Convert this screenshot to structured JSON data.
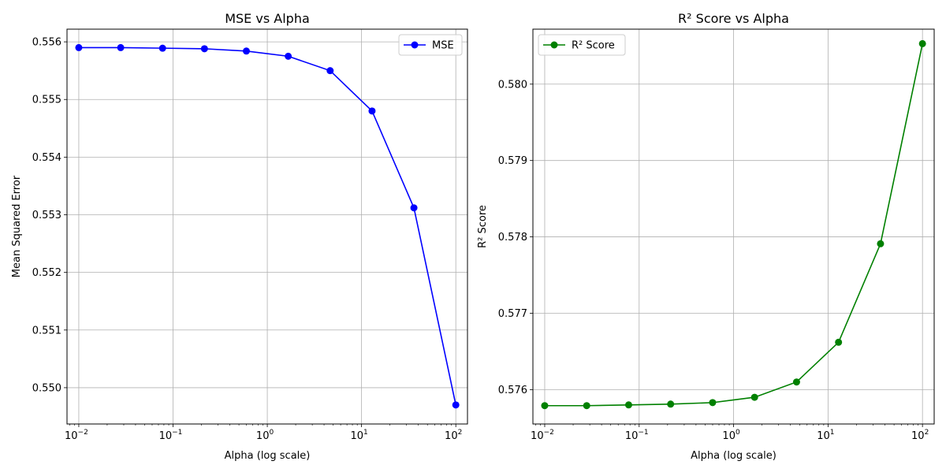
{
  "chart_data": [
    {
      "type": "line",
      "title": "MSE vs Alpha",
      "xlabel": "Alpha (log scale)",
      "ylabel": "Mean Squared Error",
      "xscale": "log",
      "xlim": [
        0.0075,
        133
      ],
      "ylim": [
        0.54937,
        0.55622
      ],
      "grid": true,
      "legend": "top-right",
      "x": [
        0.01,
        0.02783,
        0.07743,
        0.2154,
        0.5995,
        1.668,
        4.642,
        12.92,
        35.94,
        100
      ],
      "series": [
        {
          "name": "MSE",
          "color": "#0000ff",
          "marker": "circle",
          "values": [
            0.5559,
            0.5559,
            0.55589,
            0.55588,
            0.55584,
            0.55575,
            0.5555,
            0.5548,
            0.55312,
            0.5497
          ]
        }
      ],
      "yticks": [
        0.55,
        0.551,
        0.552,
        0.553,
        0.554,
        0.555,
        0.556
      ],
      "ytick_labels": [
        "0.550",
        "0.551",
        "0.552",
        "0.553",
        "0.554",
        "0.555",
        "0.556"
      ],
      "xticks": [
        0.01,
        0.1,
        1,
        10,
        100
      ],
      "xtick_labels": [
        {
          "base": "10",
          "exp": "−2"
        },
        {
          "base": "10",
          "exp": "−1"
        },
        {
          "base": "10",
          "exp": "0"
        },
        {
          "base": "10",
          "exp": "1"
        },
        {
          "base": "10",
          "exp": "2"
        }
      ]
    },
    {
      "type": "line",
      "title": "R² Score vs Alpha",
      "xlabel": "Alpha (log scale)",
      "ylabel": "R² Score",
      "xscale": "log",
      "xlim": [
        0.0075,
        133
      ],
      "ylim": [
        0.57555,
        0.58072
      ],
      "grid": true,
      "legend": "top-left",
      "x": [
        0.01,
        0.02783,
        0.07743,
        0.2154,
        0.5995,
        1.668,
        4.642,
        12.92,
        35.94,
        100
      ],
      "series": [
        {
          "name": "R² Score",
          "color": "#008000",
          "marker": "circle",
          "values": [
            0.57579,
            0.57579,
            0.5758,
            0.57581,
            0.57583,
            0.5759,
            0.5761,
            0.57662,
            0.57791,
            0.58053
          ]
        }
      ],
      "yticks": [
        0.576,
        0.577,
        0.578,
        0.579,
        0.58
      ],
      "ytick_labels": [
        "0.576",
        "0.577",
        "0.578",
        "0.579",
        "0.580"
      ],
      "xticks": [
        0.01,
        0.1,
        1,
        10,
        100
      ],
      "xtick_labels": [
        {
          "base": "10",
          "exp": "−2"
        },
        {
          "base": "10",
          "exp": "−1"
        },
        {
          "base": "10",
          "exp": "0"
        },
        {
          "base": "10",
          "exp": "1"
        },
        {
          "base": "10",
          "exp": "2"
        }
      ]
    }
  ]
}
